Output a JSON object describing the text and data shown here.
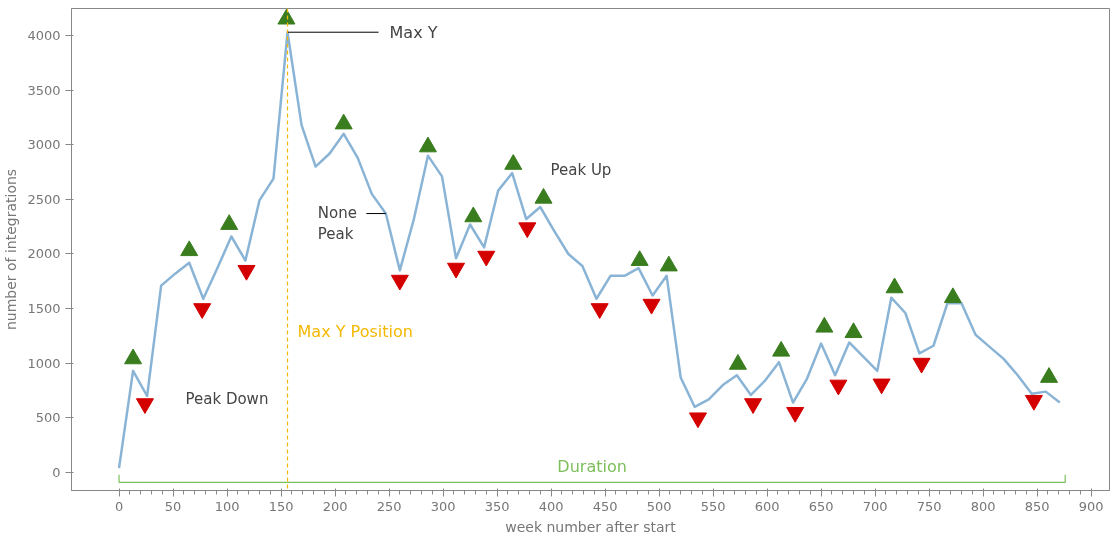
{
  "chart_data": {
    "type": "line",
    "xlabel": "week number after start",
    "ylabel": "number of integrations",
    "xlim": [
      -44,
      917
    ],
    "ylim": [
      -165,
      4247
    ],
    "xticks": [
      0,
      50,
      100,
      150,
      200,
      250,
      300,
      350,
      400,
      450,
      500,
      550,
      600,
      650,
      700,
      750,
      800,
      850,
      900
    ],
    "yticks": [
      0,
      500,
      1000,
      1500,
      2000,
      2500,
      3000,
      3500,
      4000
    ],
    "grid": false,
    "series": [
      {
        "color": "#8ab4d6",
        "marker": "none",
        "line_style": "solid",
        "x": [
          0,
          13,
          26,
          39,
          52,
          65,
          78,
          91,
          104,
          117,
          130,
          143,
          156,
          169,
          182,
          195,
          208,
          221,
          234,
          247,
          260,
          273,
          286,
          299,
          312,
          325,
          338,
          351,
          364,
          377,
          390,
          403,
          416,
          429,
          442,
          455,
          468,
          481,
          494,
          507,
          520,
          533,
          546,
          559,
          572,
          585,
          598,
          611,
          624,
          637,
          650,
          663,
          676,
          689,
          702,
          715,
          728,
          741,
          754,
          767,
          780,
          793,
          806,
          819,
          832,
          845,
          858,
          871
        ],
        "values": [
          40,
          930,
          700,
          1710,
          1820,
          1920,
          1590,
          1870,
          2160,
          1940,
          2490,
          2690,
          4030,
          3180,
          2800,
          2920,
          3100,
          2880,
          2550,
          2370,
          1850,
          2320,
          2900,
          2710,
          1960,
          2270,
          2060,
          2580,
          2740,
          2320,
          2430,
          2210,
          2000,
          1890,
          1590,
          1800,
          1800,
          1870,
          1620,
          1800,
          870,
          600,
          670,
          800,
          890,
          710,
          840,
          1010,
          640,
          860,
          1180,
          890,
          1190,
          1060,
          930,
          1600,
          1460,
          1090,
          1160,
          1550,
          1550,
          1260,
          1150,
          1040,
          890,
          720,
          740,
          640
        ]
      },
      {
        "type": "scatter",
        "color": "#3a7d1e",
        "marker": "triangle",
        "x": [
          13,
          65,
          102,
          155,
          208,
          286,
          328,
          365,
          393,
          482,
          509,
          573,
          613,
          653,
          680,
          718,
          772,
          861
        ],
        "values": [
          1040,
          2030,
          2270,
          4150,
          3190,
          2980,
          2340,
          2820,
          2510,
          1940,
          1890,
          990,
          1110,
          1330,
          1280,
          1690,
          1600,
          870
        ]
      },
      {
        "type": "scatter",
        "color": "#d40000",
        "marker": "triangle",
        "x": [
          24,
          77,
          118,
          260,
          312,
          340,
          378,
          445,
          493,
          536,
          587,
          626,
          666,
          706,
          743,
          847
        ],
        "values": [
          630,
          1500,
          1850,
          1760,
          1870,
          1980,
          2240,
          1500,
          1540,
          500,
          630,
          550,
          800,
          810,
          1000,
          660
        ]
      },
      {
        "type": "line",
        "name": "Duration",
        "color": "#7cbf5a",
        "marker": "none",
        "line_style": "solid",
        "x": [
          0,
          0,
          876,
          876
        ],
        "values": [
          -20,
          -90,
          -90,
          -20
        ]
      }
    ],
    "ref_lines": [
      {
        "axis": "x",
        "value": 156,
        "label": "Max Y Position",
        "color": "#f5b800",
        "line_style": "dashed"
      }
    ],
    "annotations": [
      {
        "text": "Max Y",
        "x": 156,
        "y": 4030
      },
      {
        "text": "None\nPeak",
        "x": 247,
        "y": 2370
      },
      "Peak Up",
      "Peak Down"
    ]
  }
}
